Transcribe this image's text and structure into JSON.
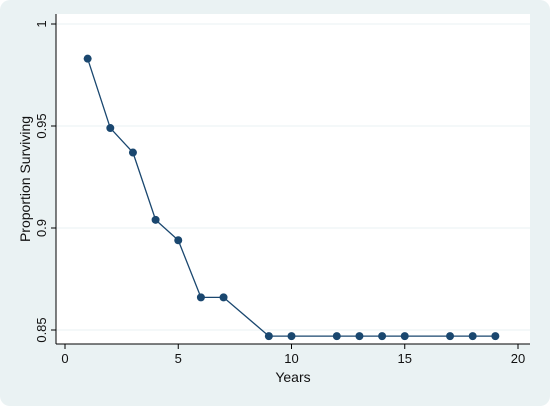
{
  "chart_data": {
    "type": "line",
    "title": "",
    "xlabel": "Years",
    "ylabel": "Proportion Surviving",
    "xlim": [
      0,
      20
    ],
    "ylim": [
      0.845,
      1.0
    ],
    "xticks": [
      0,
      5,
      10,
      15,
      20
    ],
    "yticks": [
      0.85,
      0.9,
      0.95,
      1
    ],
    "xtick_labels": [
      "0",
      "5",
      "10",
      "15",
      "20"
    ],
    "ytick_labels": [
      "0.85",
      "0.9",
      "0.95",
      "1"
    ],
    "grid": "horizontal",
    "legend": "none",
    "colors": {
      "background": "#eaf2f3",
      "plot_area": "#ffffff",
      "line": "#1a476f",
      "marker": "#1a476f",
      "grid": "#eaf2f3"
    },
    "series": [
      {
        "x": [
          1,
          2,
          3,
          4,
          5,
          6,
          7,
          9,
          10,
          12,
          13,
          14,
          15,
          17,
          18,
          19
        ],
        "y": [
          0.983,
          0.949,
          0.937,
          0.904,
          0.894,
          0.866,
          0.866,
          0.847,
          0.847,
          0.847,
          0.847,
          0.847,
          0.847,
          0.847,
          0.847,
          0.847
        ]
      }
    ]
  }
}
